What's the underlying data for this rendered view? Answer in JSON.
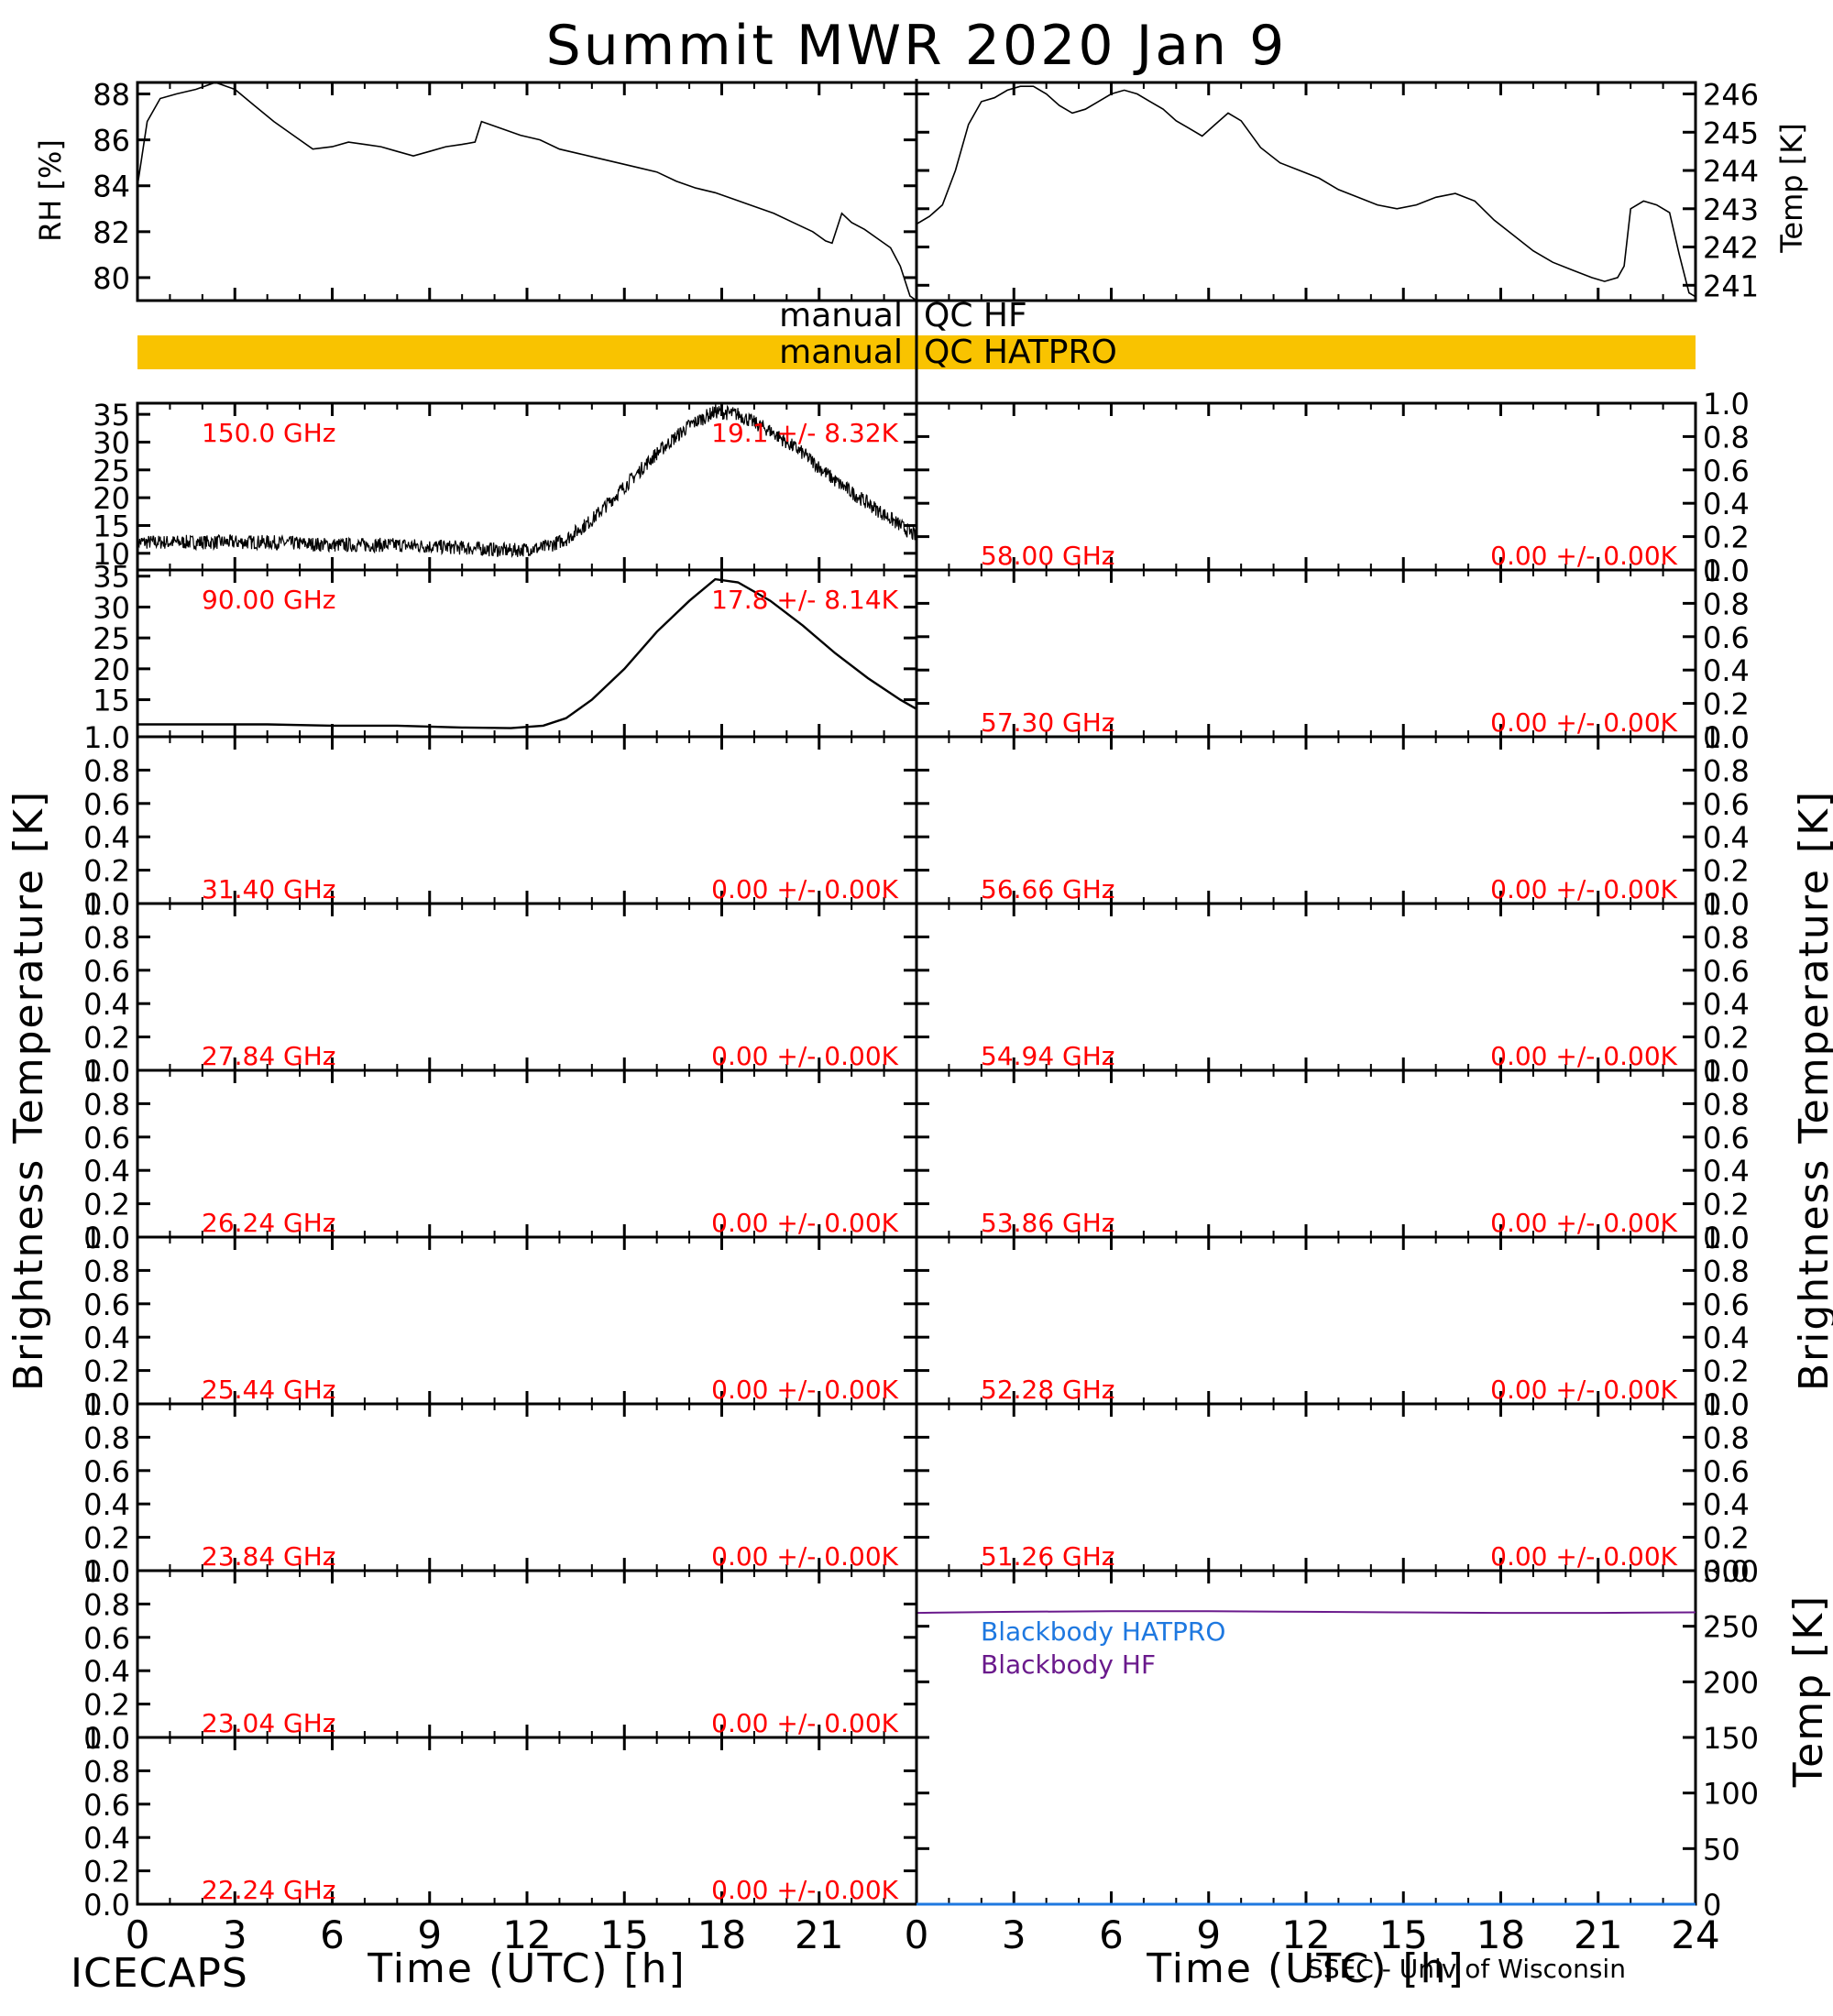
{
  "title": "Summit MWR 2020 Jan  9",
  "footer": {
    "left": "ICECAPS",
    "right": "SSEC - Univ of Wisconsin"
  },
  "axis_labels": {
    "time": "Time (UTC) [h]",
    "tb_left": "Brightness Temperature [K]",
    "tb_right": "Brightness Temperature [K]",
    "rh": "RH [%]",
    "temp_top": "Temp [K]",
    "temp_bb": "Temp [K]"
  },
  "qc": {
    "hf_label": "manual",
    "hf_text": "QC HF",
    "hatpro_label": "manual",
    "hatpro_text": "QC HATPRO",
    "hatpro_color": "#F9C300"
  },
  "colors": {
    "annotation": "#FF0000",
    "hatpro": "#1E78E0",
    "hf": "#6A1A8C",
    "line": "#000000"
  },
  "chart_data": [
    {
      "id": "rh",
      "type": "line",
      "ylabel": "RH [%]",
      "xlim": [
        0,
        24
      ],
      "ylim": [
        79,
        88.5
      ],
      "yticks": [
        80,
        82,
        84,
        86,
        88
      ],
      "xticks": [
        0,
        3,
        6,
        9,
        12,
        15,
        18,
        21,
        24
      ],
      "x": [
        0,
        0.3,
        0.7,
        1.2,
        1.8,
        2.4,
        3.0,
        3.6,
        4.2,
        4.8,
        5.4,
        6.0,
        6.5,
        7.0,
        7.5,
        8.0,
        8.5,
        9.0,
        9.5,
        10.0,
        10.4,
        10.6,
        10.8,
        11.2,
        11.8,
        12.4,
        13.0,
        13.6,
        14.2,
        14.8,
        15.4,
        16.0,
        16.6,
        17.2,
        17.8,
        18.4,
        19.0,
        19.6,
        20.2,
        20.8,
        21.2,
        21.4,
        21.7,
        22.0,
        22.4,
        22.8,
        23.2,
        23.5,
        23.8,
        24.0
      ],
      "y": [
        84.0,
        86.8,
        87.8,
        88.0,
        88.2,
        88.5,
        88.2,
        87.5,
        86.8,
        86.2,
        85.6,
        85.7,
        85.9,
        85.8,
        85.7,
        85.5,
        85.3,
        85.5,
        85.7,
        85.8,
        85.9,
        86.8,
        86.7,
        86.5,
        86.2,
        86.0,
        85.6,
        85.4,
        85.2,
        85.0,
        84.8,
        84.6,
        84.2,
        83.9,
        83.7,
        83.4,
        83.1,
        82.8,
        82.4,
        82.0,
        81.6,
        81.5,
        82.8,
        82.4,
        82.1,
        81.7,
        81.3,
        80.5,
        79.2,
        79.0
      ]
    },
    {
      "id": "temp",
      "type": "line",
      "ylabel": "Temp [K]",
      "xlim": [
        0,
        24
      ],
      "ylim": [
        240.6,
        246.3
      ],
      "yticks": [
        241,
        242,
        243,
        244,
        245,
        246
      ],
      "xticks": [
        0,
        3,
        6,
        9,
        12,
        15,
        18,
        21,
        24
      ],
      "x": [
        0,
        0.4,
        0.8,
        1.2,
        1.6,
        2.0,
        2.4,
        2.8,
        3.2,
        3.6,
        4.0,
        4.4,
        4.8,
        5.2,
        5.6,
        6.0,
        6.4,
        6.8,
        7.2,
        7.6,
        8.0,
        8.4,
        8.8,
        9.2,
        9.6,
        10.0,
        10.6,
        11.2,
        11.8,
        12.4,
        13.0,
        13.6,
        14.2,
        14.8,
        15.4,
        16.0,
        16.6,
        17.2,
        17.8,
        18.4,
        19.0,
        19.6,
        20.2,
        20.8,
        21.2,
        21.6,
        21.8,
        22.0,
        22.4,
        22.8,
        23.2,
        23.5,
        23.8,
        24.0
      ],
      "y": [
        242.6,
        242.8,
        243.1,
        244.0,
        245.2,
        245.8,
        245.9,
        246.1,
        246.2,
        246.2,
        246.0,
        245.7,
        245.5,
        245.6,
        245.8,
        246.0,
        246.1,
        246.0,
        245.8,
        245.6,
        245.3,
        245.1,
        244.9,
        245.2,
        245.5,
        245.3,
        244.6,
        244.2,
        244.0,
        243.8,
        243.5,
        243.3,
        243.1,
        243.0,
        243.1,
        243.3,
        243.4,
        243.2,
        242.7,
        242.3,
        241.9,
        241.6,
        241.4,
        241.2,
        241.1,
        241.2,
        241.5,
        243.0,
        243.2,
        243.1,
        242.9,
        241.8,
        240.8,
        240.7
      ]
    }
  ],
  "panels_left": [
    {
      "freq": "150.0 GHz",
      "stat": "19.1 +/-  8.32K",
      "ylim": [
        7,
        37
      ],
      "yticks": [
        10,
        15,
        20,
        25,
        30,
        35
      ],
      "x": [
        0,
        2,
        4,
        6,
        8,
        10,
        11.5,
        12.5,
        13.2,
        14.0,
        15.0,
        16.0,
        17.0,
        17.8,
        18.5,
        19.5,
        20.5,
        21.5,
        22.5,
        23.5,
        24
      ],
      "y": [
        12,
        12,
        12,
        11.5,
        11.5,
        11,
        10.5,
        11,
        12.5,
        16,
        22,
        28,
        33,
        35.5,
        35,
        32,
        28,
        23,
        19,
        15,
        13
      ],
      "noisy": true
    },
    {
      "freq": "90.00 GHz",
      "stat": "17.8 +/-  8.14K",
      "ylim": [
        9,
        36
      ],
      "yticks": [
        15,
        20,
        25,
        30,
        35
      ],
      "x": [
        0,
        2,
        4,
        6,
        8,
        10,
        11.5,
        12.5,
        13.2,
        14.0,
        15.0,
        16.0,
        17.0,
        17.8,
        18.5,
        19.5,
        20.5,
        21.5,
        22.5,
        23.5,
        24
      ],
      "y": [
        11,
        11,
        11,
        10.8,
        10.8,
        10.5,
        10.4,
        10.8,
        12,
        15,
        20,
        26,
        31,
        34.5,
        34,
        31,
        27,
        22.5,
        18.5,
        15,
        13.5
      ],
      "noisy": false
    },
    {
      "freq": "31.40 GHz",
      "stat": "0.00 +/-  0.00K",
      "ylim": [
        0,
        1
      ],
      "yticks": [
        0,
        0.2,
        0.4,
        0.6,
        0.8,
        1.0
      ]
    },
    {
      "freq": "27.84 GHz",
      "stat": "0.00 +/-  0.00K",
      "ylim": [
        0,
        1
      ],
      "yticks": [
        0,
        0.2,
        0.4,
        0.6,
        0.8,
        1.0
      ]
    },
    {
      "freq": "26.24 GHz",
      "stat": "0.00 +/-  0.00K",
      "ylim": [
        0,
        1
      ],
      "yticks": [
        0,
        0.2,
        0.4,
        0.6,
        0.8,
        1.0
      ]
    },
    {
      "freq": "25.44 GHz",
      "stat": "0.00 +/-  0.00K",
      "ylim": [
        0,
        1
      ],
      "yticks": [
        0,
        0.2,
        0.4,
        0.6,
        0.8,
        1.0
      ]
    },
    {
      "freq": "23.84 GHz",
      "stat": "0.00 +/-  0.00K",
      "ylim": [
        0,
        1
      ],
      "yticks": [
        0,
        0.2,
        0.4,
        0.6,
        0.8,
        1.0
      ]
    },
    {
      "freq": "23.04 GHz",
      "stat": "0.00 +/-  0.00K",
      "ylim": [
        0,
        1
      ],
      "yticks": [
        0,
        0.2,
        0.4,
        0.6,
        0.8,
        1.0
      ]
    },
    {
      "freq": "22.24 GHz",
      "stat": "0.00 +/-  0.00K",
      "ylim": [
        0,
        1
      ],
      "yticks": [
        0,
        0.2,
        0.4,
        0.6,
        0.8,
        1.0
      ]
    }
  ],
  "panels_right": [
    {
      "freq": "58.00 GHz",
      "stat": "0.00 +/-  0.00K",
      "ylim": [
        0,
        1
      ],
      "yticks": [
        0,
        0.2,
        0.4,
        0.6,
        0.8,
        1.0
      ]
    },
    {
      "freq": "57.30 GHz",
      "stat": "0.00 +/-  0.00K",
      "ylim": [
        0,
        1
      ],
      "yticks": [
        0,
        0.2,
        0.4,
        0.6,
        0.8,
        1.0
      ]
    },
    {
      "freq": "56.66 GHz",
      "stat": "0.00 +/-  0.00K",
      "ylim": [
        0,
        1
      ],
      "yticks": [
        0,
        0.2,
        0.4,
        0.6,
        0.8,
        1.0
      ]
    },
    {
      "freq": "54.94 GHz",
      "stat": "0.00 +/-  0.00K",
      "ylim": [
        0,
        1
      ],
      "yticks": [
        0,
        0.2,
        0.4,
        0.6,
        0.8,
        1.0
      ]
    },
    {
      "freq": "53.86 GHz",
      "stat": "0.00 +/-  0.00K",
      "ylim": [
        0,
        1
      ],
      "yticks": [
        0,
        0.2,
        0.4,
        0.6,
        0.8,
        1.0
      ]
    },
    {
      "freq": "52.28 GHz",
      "stat": "0.00 +/-  0.00K",
      "ylim": [
        0,
        1
      ],
      "yticks": [
        0,
        0.2,
        0.4,
        0.6,
        0.8,
        1.0
      ]
    },
    {
      "freq": "51.26 GHz",
      "stat": "0.00 +/-  0.00K",
      "ylim": [
        0,
        1
      ],
      "yticks": [
        0,
        0.2,
        0.4,
        0.6,
        0.8,
        1.0
      ]
    }
  ],
  "blackbody": {
    "ylim": [
      0,
      300
    ],
    "yticks": [
      0,
      50,
      100,
      150,
      200,
      250,
      300
    ],
    "legend": [
      "Blackbody HATPRO",
      "Blackbody HF"
    ],
    "hatpro_series": {
      "x": [
        0,
        24
      ],
      "y": [
        0,
        0
      ]
    },
    "hf_series": {
      "x": [
        0,
        3,
        6,
        9,
        12,
        15,
        18,
        21,
        24
      ],
      "y": [
        262,
        263,
        263.5,
        263.5,
        263,
        262.5,
        262,
        262,
        262.5
      ]
    }
  },
  "xticks": [
    0,
    3,
    6,
    9,
    12,
    15,
    18,
    21,
    24
  ],
  "xtick_labels_left": [
    "0",
    "3",
    "6",
    "9",
    "12",
    "15",
    "18",
    "21"
  ],
  "xtick_labels_right": [
    "0",
    "3",
    "6",
    "9",
    "12",
    "15",
    "18",
    "21",
    "24"
  ]
}
